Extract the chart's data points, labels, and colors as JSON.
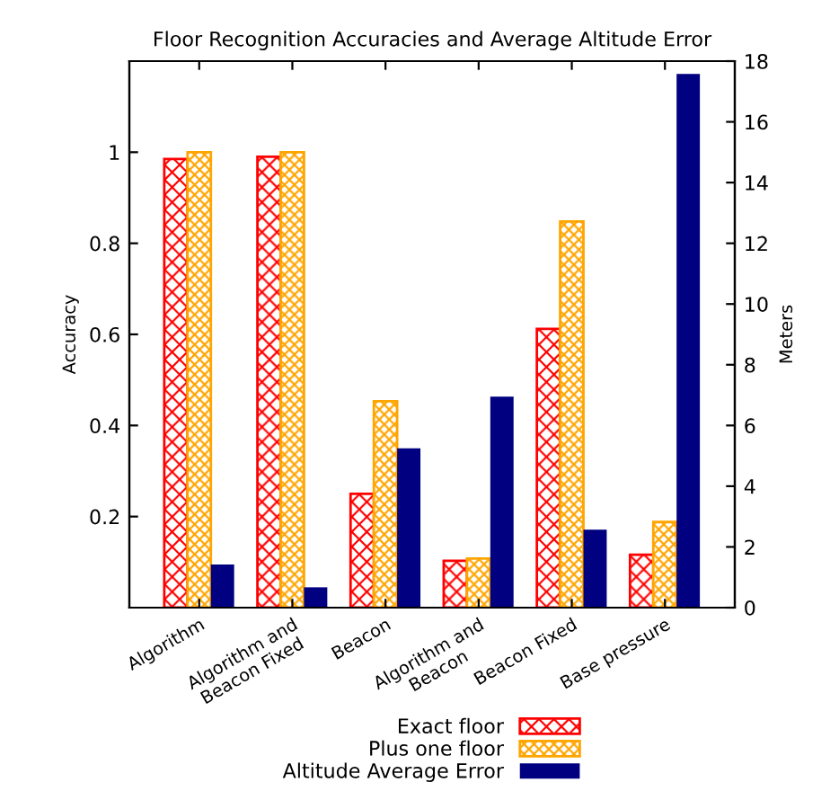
{
  "chart_data": {
    "type": "bar",
    "title": "Floor Recognition Accuracies and Average Altitude Error",
    "ylabel": "Accuracy",
    "y2label": "Meters",
    "categories": [
      "Algorithm",
      "Algorithm and\nBeacon Fixed",
      "Beacon",
      "Algorithm and\nBeacon",
      "Beacon Fixed",
      "Base pressure"
    ],
    "series": [
      {
        "name": "Exact floor",
        "color": "#ff0000",
        "values": [
          0.985,
          0.99,
          0.25,
          0.103,
          0.612,
          0.116
        ]
      },
      {
        "name": "Plus one floor",
        "color": "#ffa500",
        "values": [
          1.0,
          1.0,
          0.453,
          0.108,
          0.848,
          0.188
        ]
      },
      {
        "name": "Altitude Average Error",
        "color": "#000080",
        "axis": "y2",
        "values": [
          1.42,
          0.67,
          5.25,
          6.95,
          2.57,
          17.58
        ]
      }
    ],
    "ylim": [
      0,
      1.2
    ],
    "yticks": [
      0.2,
      0.4,
      0.6,
      0.8,
      1
    ],
    "y2lim": [
      0,
      18
    ],
    "y2ticks": [
      0,
      2,
      4,
      6,
      8,
      10,
      12,
      14,
      16,
      18
    ],
    "legend": "bottom",
    "grid": false
  }
}
